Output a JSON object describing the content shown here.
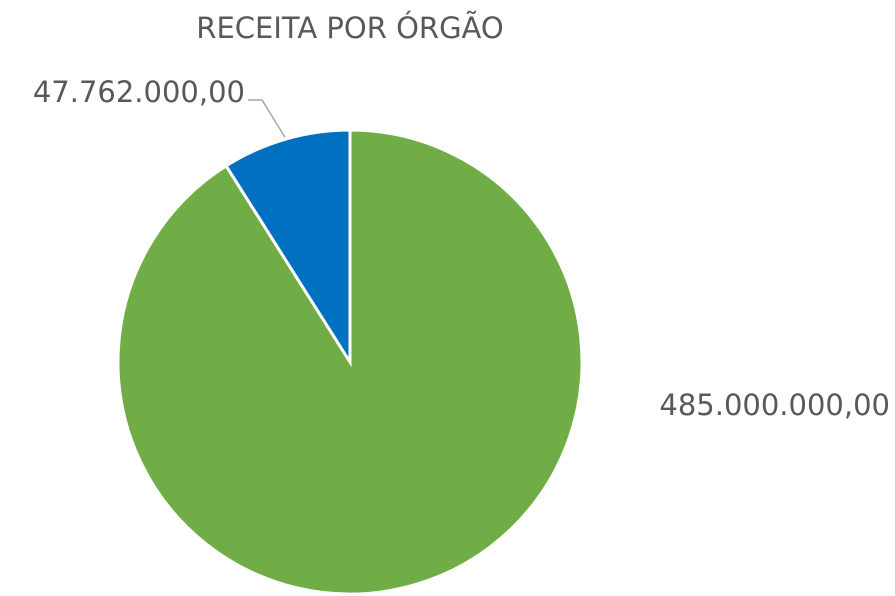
{
  "chart_data": {
    "type": "pie",
    "title": "RECEITA POR ÓRGÃO",
    "values": [
      485000000,
      47762000
    ],
    "value_labels": [
      "485.000.000,00",
      "47.762.000,00"
    ],
    "colors": [
      "#70ad47",
      "#0070c0"
    ]
  }
}
